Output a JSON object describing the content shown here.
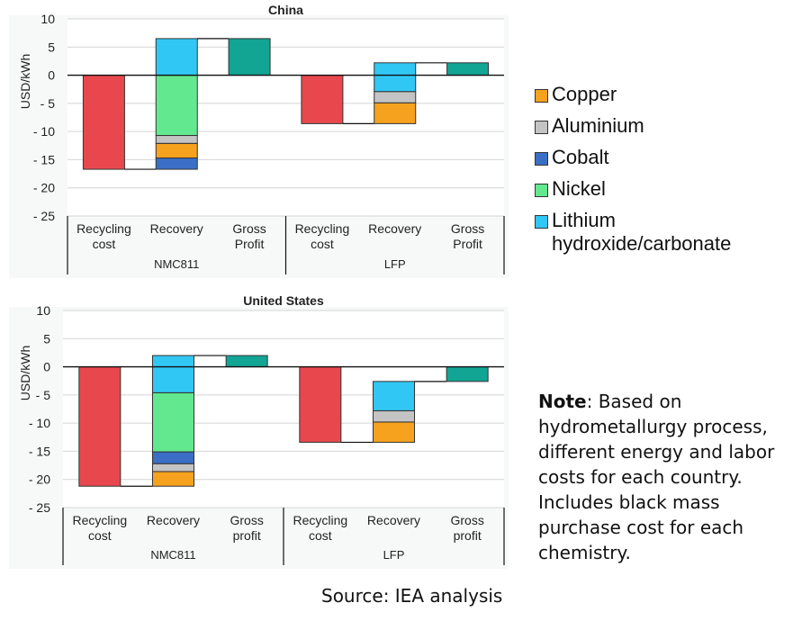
{
  "chart_data": [
    {
      "type": "waterfall",
      "title": "China",
      "ylabel": "USD/kWh",
      "ylim": [
        -25,
        10
      ],
      "yticks": [
        10,
        5,
        0,
        -5,
        -10,
        -15,
        -20,
        -25
      ],
      "ytick_labels": [
        "10",
        "5",
        "0",
        "- 5",
        "- 10",
        "- 15",
        "- 20",
        "- 25"
      ],
      "groups": [
        {
          "name": "NMC811",
          "categories": [
            "Recycling\ncost",
            "Recovery",
            "Gross\nProfit"
          ],
          "recycling_cost": -16.7,
          "recovery_segments": [
            {
              "name": "Cobalt",
              "value": 2.0
            },
            {
              "name": "Copper",
              "value": 2.6
            },
            {
              "name": "Aluminium",
              "value": 1.4
            },
            {
              "name": "Nickel",
              "value": 10.7
            },
            {
              "name": "Lithium hydroxide/carbonate",
              "value": 6.5
            }
          ],
          "gross_profit": 6.5
        },
        {
          "name": "LFP",
          "categories": [
            "Recycling\ncost",
            "Recovery",
            "Gross\nProfit"
          ],
          "recycling_cost": -8.6,
          "recovery_segments": [
            {
              "name": "Copper",
              "value": 3.7
            },
            {
              "name": "Aluminium",
              "value": 2.0
            },
            {
              "name": "Lithium hydroxide/carbonate",
              "value": 5.1
            }
          ],
          "gross_profit": 2.2
        }
      ]
    },
    {
      "type": "waterfall",
      "title": "United States",
      "ylabel": "USD/kWh",
      "ylim": [
        -25,
        10
      ],
      "yticks": [
        10,
        5,
        0,
        -5,
        -10,
        -15,
        -20,
        -25
      ],
      "ytick_labels": [
        "10",
        "5",
        "0",
        "- 5",
        "- 10",
        "- 15",
        "- 20",
        "- 25"
      ],
      "groups": [
        {
          "name": "NMC811",
          "categories": [
            "Recycling\ncost",
            "Recovery",
            "Gross\nprofit"
          ],
          "recycling_cost": -21.2,
          "recovery_segments": [
            {
              "name": "Copper",
              "value": 2.6
            },
            {
              "name": "Aluminium",
              "value": 1.4
            },
            {
              "name": "Cobalt",
              "value": 2.1
            },
            {
              "name": "Nickel",
              "value": 10.5
            },
            {
              "name": "Lithium hydroxide/carbonate",
              "value": 6.6
            }
          ],
          "gross_profit": 2.0
        },
        {
          "name": "LFP",
          "categories": [
            "Recycling\ncost",
            "Recovery",
            "Gross\nprofit"
          ],
          "recycling_cost": -13.4,
          "recovery_segments": [
            {
              "name": "Copper",
              "value": 3.6
            },
            {
              "name": "Aluminium",
              "value": 2.0
            },
            {
              "name": "Lithium hydroxide/carbonate",
              "value": 5.2
            }
          ],
          "gross_profit": -2.6
        }
      ]
    }
  ],
  "colors": {
    "Recycling cost": "#e8484d",
    "Gross profit": "#12a594",
    "Copper": "#f6a21e",
    "Aluminium": "#c4c4c4",
    "Cobalt": "#3b6fc6",
    "Nickel": "#62e98f",
    "Lithium hydroxide/carbonate": "#31c7f5"
  },
  "legend": [
    {
      "label": "Copper",
      "color": "#f6a21e"
    },
    {
      "label": "Aluminium",
      "color": "#c4c4c4"
    },
    {
      "label": "Cobalt",
      "color": "#3b6fc6"
    },
    {
      "label": "Nickel",
      "color": "#62e98f"
    },
    {
      "label": "Lithium\nhydroxide/carbonate",
      "color": "#31c7f5"
    }
  ],
  "note": {
    "label": "Note",
    "text": ": Based on hydrometallurgy process, different energy and labor costs for each country. Includes black mass purchase cost for each chemistry."
  },
  "source": "Source: IEA analysis"
}
